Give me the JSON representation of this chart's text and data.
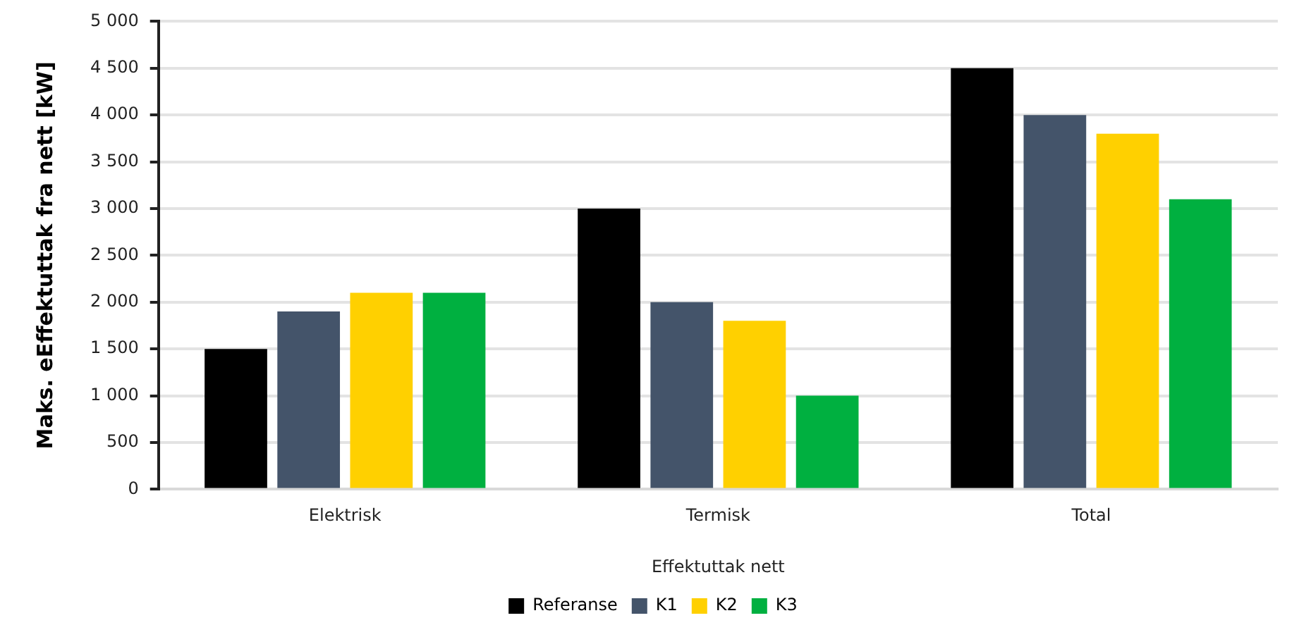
{
  "chart_data": {
    "type": "bar",
    "xlabel": "Effektuttak nett",
    "ylabel": "Maks. eEffektuttak fra nett [kW]",
    "categories": [
      "Elektrisk",
      "Termisk",
      "Total"
    ],
    "series": [
      {
        "name": "Referanse",
        "color": "#000000",
        "values": [
          1500,
          3000,
          4500
        ]
      },
      {
        "name": "K1",
        "color": "#44546a",
        "values": [
          1900,
          2000,
          4000
        ]
      },
      {
        "name": "K2",
        "color": "#ffd000",
        "values": [
          2100,
          1800,
          3800
        ]
      },
      {
        "name": "K3",
        "color": "#00b040",
        "values": [
          2100,
          1000,
          3100
        ]
      }
    ],
    "ylim": [
      0,
      5000
    ],
    "yticks": [
      0,
      500,
      {
        "value": 1000,
        "label": "1 000"
      },
      {
        "value": 1500,
        "label": "1 500"
      },
      {
        "value": 2000,
        "label": "2 000"
      },
      {
        "value": 2500,
        "label": "2 500"
      },
      {
        "value": 3000,
        "label": "3 000"
      },
      {
        "value": 3500,
        "label": "3 500"
      },
      {
        "value": 4000,
        "label": "4 000"
      },
      {
        "value": 4500,
        "label": "4 500"
      },
      {
        "value": 5000,
        "label": "5 000"
      }
    ],
    "grid": "y",
    "legend": "bottom"
  }
}
